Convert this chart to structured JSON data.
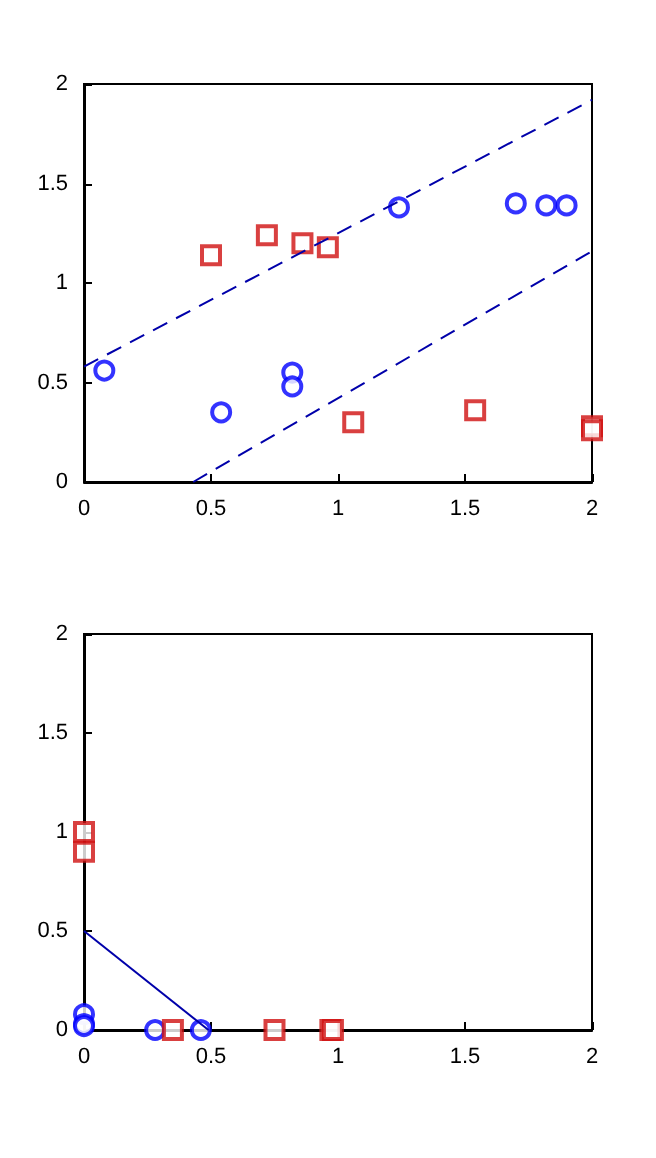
{
  "chart_data": [
    {
      "type": "scatter",
      "xlim": [
        0,
        2
      ],
      "ylim": [
        0,
        2
      ],
      "xticks": [
        0,
        0.5,
        1,
        1.5,
        2
      ],
      "yticks": [
        0,
        0.5,
        1,
        1.5,
        2
      ],
      "grid": false,
      "series": [
        {
          "type": "scatter",
          "marker": "circle",
          "color": "#0000ff",
          "x": [
            0.08,
            0.54,
            0.82,
            0.82,
            1.24,
            1.7,
            1.82,
            1.9
          ],
          "values": [
            0.56,
            0.35,
            0.55,
            0.48,
            1.38,
            1.4,
            1.39,
            1.39
          ]
        },
        {
          "type": "scatter",
          "marker": "square",
          "color": "#d01010",
          "x": [
            0.5,
            0.72,
            0.86,
            0.96,
            1.06,
            1.54,
            2,
            2
          ],
          "values": [
            1.14,
            1.24,
            1.2,
            1.18,
            0.3,
            0.36,
            0.28,
            0.26
          ]
        },
        {
          "type": "line",
          "marker": "none",
          "line_style": "dashed",
          "color": "#0000aa",
          "x": [
            0,
            2
          ],
          "values": [
            0.58,
            1.92
          ]
        },
        {
          "type": "line",
          "marker": "none",
          "line_style": "dashed",
          "color": "#0000aa",
          "x": [
            0.43,
            2
          ],
          "values": [
            0,
            1.16
          ]
        }
      ]
    },
    {
      "type": "scatter",
      "xlim": [
        0,
        2
      ],
      "ylim": [
        0,
        2
      ],
      "xticks": [
        0,
        0.5,
        1,
        1.5,
        2
      ],
      "yticks": [
        0,
        0.5,
        1,
        1.5,
        2
      ],
      "grid": false,
      "series": [
        {
          "type": "scatter",
          "marker": "circle",
          "color": "#0000ff",
          "x": [
            0,
            0,
            0,
            0.28,
            0.46
          ],
          "values": [
            0.08,
            0.03,
            0.02,
            0,
            0
          ]
        },
        {
          "type": "scatter",
          "marker": "square",
          "color": "#d01010",
          "x": [
            0,
            0,
            0.35,
            0.75,
            0.97,
            0.98
          ],
          "values": [
            1,
            0.9,
            0,
            0,
            0,
            0
          ]
        },
        {
          "type": "line",
          "marker": "none",
          "line_style": "solid",
          "color": "#0000aa",
          "x": [
            0,
            0.49
          ],
          "values": [
            0.5,
            0
          ]
        }
      ]
    }
  ]
}
